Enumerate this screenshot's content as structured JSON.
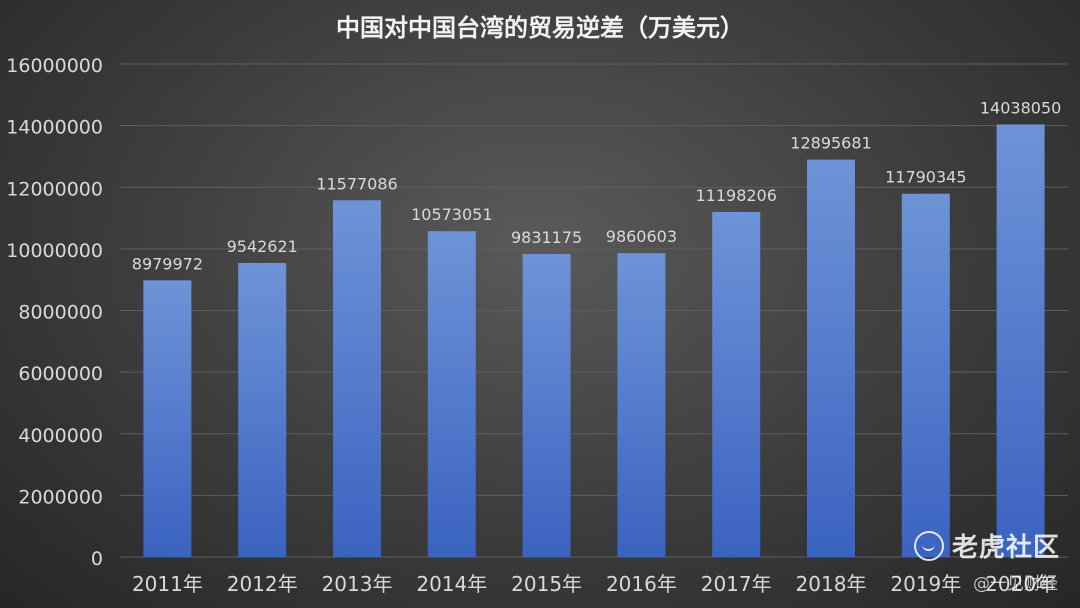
{
  "chart_data": {
    "type": "bar",
    "title": "中国对中国台湾的贸易逆差（万美元）",
    "categories": [
      "2011年",
      "2012年",
      "2013年",
      "2014年",
      "2015年",
      "2016年",
      "2017年",
      "2018年",
      "2019年",
      "2020年"
    ],
    "values": [
      8979972,
      9542621,
      11577086,
      10573051,
      9831175,
      9860603,
      11198206,
      12895681,
      11790345,
      14038050
    ],
    "ylim": [
      0,
      16000000
    ],
    "yticks": [
      0,
      2000000,
      4000000,
      6000000,
      8000000,
      10000000,
      12000000,
      14000000,
      16000000
    ],
    "ytick_labels": [
      "0",
      "2000000",
      "4000000",
      "6000000",
      "8000000",
      "10000000",
      "12000000",
      "14000000",
      "16000000"
    ],
    "data_labels": [
      "8979972",
      "9542621",
      "11577086",
      "10573051",
      "9831175",
      "9860603",
      "11198206",
      "12895681",
      "11790345",
      "14038050"
    ],
    "grid": true,
    "legend": "none",
    "colors": {
      "bar_top": "#6f93d8",
      "bar_bottom": "#3a63c0",
      "text": "#d9d9d9",
      "grid": "#5e5e5e"
    }
  },
  "watermark": {
    "brand": "老虎社区",
    "source": "@一见财经",
    "logo_icon": "tiger-logo-icon"
  }
}
